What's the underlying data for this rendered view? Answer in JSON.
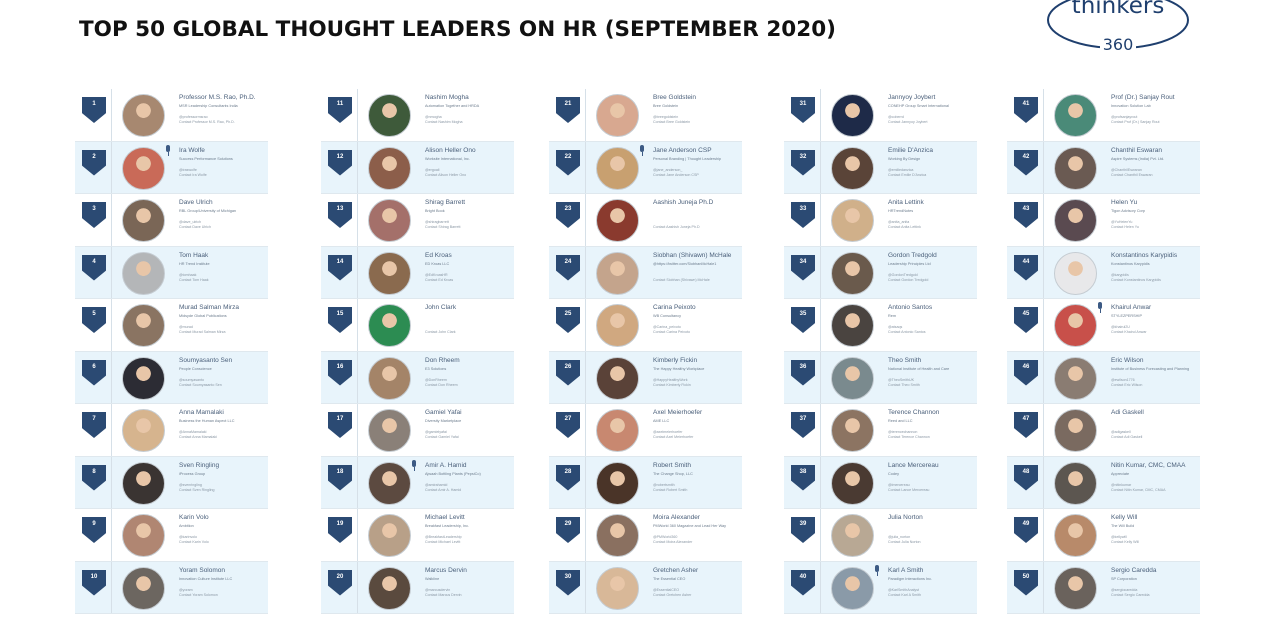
{
  "title": "TOP 50 GLOBAL THOUGHT LEADERS ON HR (SEPTEMBER 2020)",
  "logo": {
    "line1": "thinkers",
    "line2": "360",
    "color": "#1f3f6e"
  },
  "colors": {
    "rank_badge": "#2b4a73",
    "row_alt": "#e8f4fb",
    "name_text": "#4a5f7a"
  },
  "columns": [
    {
      "entries": [
        {
          "rank": "1",
          "name": "Professor M.S. Rao, Ph.D.",
          "org": "MSR Leadership Consultants India",
          "handle": "@professormsrao",
          "contact": "Contact Professor M.S. Rao, Ph.D.",
          "mic": false,
          "avatar": "#a78870"
        },
        {
          "rank": "2",
          "name": "Ira Wolfe",
          "org": "Success Performance Solutions",
          "handle": "@iraswolfe",
          "contact": "Contact Ira Wolfe",
          "mic": true,
          "avatar": "#c96a58"
        },
        {
          "rank": "3",
          "name": "Dave Ulrich",
          "org": "RBL Group/University of Michigan",
          "handle": "@dave_ulrich",
          "contact": "Contact Dave Ulrich",
          "mic": false,
          "avatar": "#7a6656"
        },
        {
          "rank": "4",
          "name": "Tom Haak",
          "org": "HR Trend Institute",
          "handle": "@tomhaak",
          "contact": "Contact Tom Haak",
          "mic": false,
          "avatar": "#b4b6b8"
        },
        {
          "rank": "5",
          "name": "Murad Salman Mirza",
          "org": "Midsyde Global Publications",
          "handle": "@murad",
          "contact": "Contact Murad Salman Mirza",
          "mic": false,
          "avatar": "#8a7462"
        },
        {
          "rank": "6",
          "name": "Soumyasanto Sen",
          "org": "People Conscience",
          "handle": "@soumyasanto",
          "contact": "Contact Soumyasanto Sen",
          "mic": false,
          "avatar": "#2c2c34"
        },
        {
          "rank": "7",
          "name": "Anna Mamalaki",
          "org": "Business the Human Aspect LLC",
          "handle": "@AnnaMamalaki",
          "contact": "Contact Anna Mamalaki",
          "mic": false,
          "avatar": "#d6b48e"
        },
        {
          "rank": "8",
          "name": "Sven Ringling",
          "org": "iProcess Group",
          "handle": "@svenringling",
          "contact": "Contact Sven Ringling",
          "mic": false,
          "avatar": "#3a3432"
        },
        {
          "rank": "9",
          "name": "Karin Volo",
          "org": "Ambition",
          "handle": "@karinvolo",
          "contact": "Contact Karin Volo",
          "mic": false,
          "avatar": "#b08672"
        },
        {
          "rank": "10",
          "name": "Yoram Solomon",
          "org": "Innovation Culture Institute LLC",
          "handle": "@yoram",
          "contact": "Contact Yoram Solomon",
          "mic": false,
          "avatar": "#6c6660"
        }
      ]
    },
    {
      "entries": [
        {
          "rank": "11",
          "name": "Nashim Mogha",
          "org": "Automation Together and HRDA",
          "handle": "@nmogha",
          "contact": "Contact Nashim Mogha",
          "mic": false,
          "avatar": "#3e5a3a"
        },
        {
          "rank": "12",
          "name": "Alison Heller Ono",
          "org": "Worksite International, Inc.",
          "handle": "@ergoali",
          "contact": "Contact Alison Heller Ono",
          "mic": false,
          "avatar": "#8c5e4a"
        },
        {
          "rank": "13",
          "name": "Shirag Barrett",
          "org": "Bright Book",
          "handle": "@shiragbarrett",
          "contact": "Contact Shirag Barrett",
          "mic": false,
          "avatar": "#a4706a"
        },
        {
          "rank": "14",
          "name": "Ed Kroas",
          "org": "ED Kroas LLC",
          "handle": "@EdKroasHR",
          "contact": "Contact Ed Kroas",
          "mic": false,
          "avatar": "#8a6a4e"
        },
        {
          "rank": "15",
          "name": "John Clark",
          "org": "",
          "handle": "",
          "contact": "Contact John Clark",
          "mic": false,
          "avatar": "#2c8c52"
        },
        {
          "rank": "16",
          "name": "Don Rheem",
          "org": "E3 Solutions",
          "handle": "@DonRheem",
          "contact": "Contact Don Rheem",
          "mic": false,
          "avatar": "#a48468"
        },
        {
          "rank": "17",
          "name": "Gamiel Yafai",
          "org": "Diversity Marketplace",
          "handle": "@gamielyafai",
          "contact": "Contact Gamiel Yafai",
          "mic": false,
          "avatar": "#8a8078"
        },
        {
          "rank": "18",
          "name": "Amir A. Hamid",
          "org": "Ajwaah Bottling Plants (PepsiCo)",
          "handle": "@amirahamid",
          "contact": "Contact Amir A. Hamid",
          "mic": true,
          "avatar": "#5c4a40"
        },
        {
          "rank": "19",
          "name": "Michael Levitt",
          "org": "Breakfast Leadership, Inc.",
          "handle": "@BreakfastLeadership",
          "contact": "Contact Michael Levitt",
          "mic": false,
          "avatar": "#b8a088"
        },
        {
          "rank": "20",
          "name": "Marcus Dervin",
          "org": "Walkline",
          "handle": "@marcusdervin",
          "contact": "Contact Marcus Dervin",
          "mic": false,
          "avatar": "#5a4a3e"
        }
      ]
    },
    {
      "entries": [
        {
          "rank": "21",
          "name": "Bree Goldstein",
          "org": "Bree Goldstein",
          "handle": "@breegoldstein",
          "contact": "Contact Bree Goldstein",
          "mic": false,
          "avatar": "#d8a890"
        },
        {
          "rank": "22",
          "name": "Jane Anderson CSP",
          "org": "Personal Branding | Thought Leadership",
          "handle": "@jane_anderson_",
          "contact": "Contact Jane Anderson CSP",
          "mic": true,
          "avatar": "#c8a070"
        },
        {
          "rank": "23",
          "name": "Aashish Juneja Ph.D",
          "org": "",
          "handle": "",
          "contact": "Contact Aashish Juneja Ph.D",
          "mic": false,
          "avatar": "#8a3a2e"
        },
        {
          "rank": "24",
          "name": "Siobhan (Shivawn) McHale",
          "org": "@https://twitter.com/SiobhanMcHale1",
          "handle": "",
          "contact": "Contact Siobhan (Shivawn) McHale",
          "mic": false,
          "avatar": "#c4a48c"
        },
        {
          "rank": "25",
          "name": "Carina Peixoto",
          "org": "WB Consultancy",
          "handle": "@Carina_peixoto",
          "contact": "Contact Carina Peixoto",
          "mic": false,
          "avatar": "#d0a880"
        },
        {
          "rank": "26",
          "name": "Kimberly Fickin",
          "org": "The Happy Healthy Workplace",
          "handle": "@HappyHealthyWork",
          "contact": "Contact Kimberly Fickin",
          "mic": false,
          "avatar": "#5a4238"
        },
        {
          "rank": "27",
          "name": "Axel Meierhoefer",
          "org": "AME LLC",
          "handle": "@axelmeierhoefer",
          "contact": "Contact Axel Meierhoefer",
          "mic": false,
          "avatar": "#c88870"
        },
        {
          "rank": "28",
          "name": "Robert Smith",
          "org": "The Change Shop, LLC",
          "handle": "@robertsmith",
          "contact": "Contact Robert Smith",
          "mic": false,
          "avatar": "#4a3428"
        },
        {
          "rank": "29",
          "name": "Moira Alexander",
          "org": "PMWorld 360 Magazine and Lead Her Way",
          "handle": "@PMWorld360",
          "contact": "Contact Moira Alexander",
          "mic": false,
          "avatar": "#8a7060"
        },
        {
          "rank": "30",
          "name": "Gretchen Asher",
          "org": "The Essential CEO",
          "handle": "@EssentialCEO",
          "contact": "Contact Gretchen Asher",
          "mic": false,
          "avatar": "#d8b898"
        }
      ]
    },
    {
      "entries": [
        {
          "rank": "31",
          "name": "Jannyoy Joybert",
          "org": "CONEHP Group Smart International",
          "handle": "@coberrd",
          "contact": "Contact Jannyoy Joybert",
          "mic": false,
          "avatar": "#1e2a48"
        },
        {
          "rank": "32",
          "name": "Emilie D'Anzica",
          "org": "Working By Design",
          "handle": "@emiliedanzica",
          "contact": "Contact Emilie D'Anzica",
          "mic": false,
          "avatar": "#5a4438"
        },
        {
          "rank": "33",
          "name": "Anita Lettink",
          "org": "HRTrendNotes",
          "handle": "@anita_anita",
          "contact": "Contact Anita Lettink",
          "mic": false,
          "avatar": "#d0b08a"
        },
        {
          "rank": "34",
          "name": "Gordon Tredgold",
          "org": "Leadership Principles Ltd",
          "handle": "@GordonTredgold",
          "contact": "Contact Gordon Tredgold",
          "mic": false,
          "avatar": "#6a5a4c"
        },
        {
          "rank": "35",
          "name": "Antonio Santos",
          "org": "Rem",
          "handle": "@atsaqs",
          "contact": "Contact Antonio Santos",
          "mic": false,
          "avatar": "#4a4440"
        },
        {
          "rank": "36",
          "name": "Theo Smith",
          "org": "National Institute of Health and Care",
          "handle": "@TheoSmithUK",
          "contact": "Contact Theo Smith",
          "mic": false,
          "avatar": "#7a8a8e"
        },
        {
          "rank": "37",
          "name": "Terence Channon",
          "org": "Reed and LLC",
          "handle": "@terencechannon",
          "contact": "Contact Terence Channon",
          "mic": false,
          "avatar": "#8c7462"
        },
        {
          "rank": "38",
          "name": "Lance Mercereau",
          "org": "Codey",
          "handle": "@lmercereau",
          "contact": "Contact Lance Mercereau",
          "mic": false,
          "avatar": "#4a3a32"
        },
        {
          "rank": "39",
          "name": "Julia Norton",
          "org": "",
          "handle": "@julia_norton",
          "contact": "Contact Julia Norton",
          "mic": false,
          "avatar": "#b8a894"
        },
        {
          "rank": "40",
          "name": "Karl A Smith",
          "org": "Paradigm Interactions Inc.",
          "handle": "@KarlSmithAnalyst",
          "contact": "Contact Karl A Smith",
          "mic": true,
          "avatar": "#8a9aa8"
        }
      ]
    },
    {
      "entries": [
        {
          "rank": "41",
          "name": "Prof (Dr.) Sanjay Rout",
          "org": "Innovation Solution Lab",
          "handle": "@profsanjayrout",
          "contact": "Contact Prof (Dr.) Sanjay Rout",
          "mic": false,
          "avatar": "#4a8a78"
        },
        {
          "rank": "42",
          "name": "Chanthil Eswaran",
          "org": "Aspire Systems (India) Pvt. Ltd.",
          "handle": "@ChanthilEswaran",
          "contact": "Contact Chanthil Eswaran",
          "mic": false,
          "avatar": "#6a5a52"
        },
        {
          "rank": "43",
          "name": "Helen Yu",
          "org": "Tigon Advisory Corp",
          "handle": "@YuHelenYu",
          "contact": "Contact Helen Yu",
          "mic": false,
          "avatar": "#5a4a50"
        },
        {
          "rank": "44",
          "name": "Konstantinos Karypidis",
          "org": "Konstantinos Karypidis",
          "handle": "@karypidis",
          "contact": "Contact Konstantinos Karypidis",
          "mic": false,
          "avatar": "#e8e8ea"
        },
        {
          "rank": "45",
          "name": "Khairul Anwar",
          "org": "STYLEZPERSHIP",
          "handle": "@khairul2U",
          "contact": "Contact Khairul Anwar",
          "mic": true,
          "avatar": "#c8504a"
        },
        {
          "rank": "46",
          "name": "Eric Wilson",
          "org": "Institute of Business Forecasting and Planning",
          "handle": "@ewilson1776",
          "contact": "Contact Eric Wilson",
          "mic": false,
          "avatar": "#8a7c72"
        },
        {
          "rank": "47",
          "name": "Adi Gaskell",
          "org": "",
          "handle": "@adigaskell",
          "contact": "Contact Adi Gaskell",
          "mic": false,
          "avatar": "#7a6a60"
        },
        {
          "rank": "48",
          "name": "Nitin Kumar, CMC, CMAA",
          "org": "Appreciate",
          "handle": "@nitinkumar",
          "contact": "Contact Nitin Kumar, CMC, CMAA",
          "mic": false,
          "avatar": "#5c5650"
        },
        {
          "rank": "49",
          "name": "Kelly Will",
          "org": "The Will Build",
          "handle": "@kellywill",
          "contact": "Contact Kelly Will",
          "mic": false,
          "avatar": "#b88a6a"
        },
        {
          "rank": "50",
          "name": "Sergio Caredda",
          "org": "SP Corporation",
          "handle": "@sergiocaredda",
          "contact": "Contact Sergio Caredda",
          "mic": false,
          "avatar": "#6a625c"
        }
      ]
    }
  ]
}
